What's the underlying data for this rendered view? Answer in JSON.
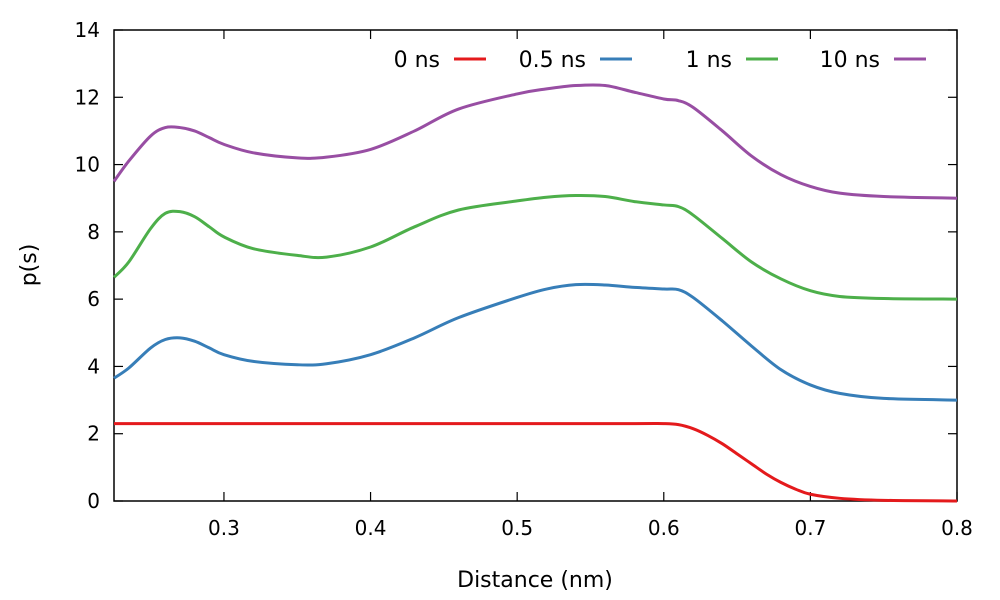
{
  "chart_data": {
    "type": "line",
    "title": "",
    "xlabel": "Distance (nm)",
    "ylabel": "p(s)",
    "xlim": [
      0.225,
      0.8
    ],
    "ylim": [
      0,
      14
    ],
    "xticks": [
      0.3,
      0.4,
      0.5,
      0.6,
      0.7,
      0.8
    ],
    "xtick_labels": [
      "0.3",
      "0.4",
      "0.5",
      "0.6",
      "0.7",
      "0.8"
    ],
    "yticks": [
      0,
      2,
      4,
      6,
      8,
      10,
      12,
      14
    ],
    "ytick_labels": [
      "0",
      "2",
      "4",
      "6",
      "8",
      "10",
      "12",
      "14"
    ],
    "grid": false,
    "legend_position": "top-right",
    "series": [
      {
        "name": "0 ns",
        "color": "#e41a1c",
        "x": [
          0.225,
          0.3,
          0.4,
          0.5,
          0.58,
          0.6,
          0.61,
          0.62,
          0.63,
          0.64,
          0.65,
          0.66,
          0.67,
          0.68,
          0.69,
          0.7,
          0.72,
          0.75,
          0.8
        ],
        "y": [
          2.3,
          2.3,
          2.3,
          2.3,
          2.3,
          2.3,
          2.27,
          2.15,
          1.95,
          1.7,
          1.4,
          1.1,
          0.8,
          0.55,
          0.35,
          0.2,
          0.08,
          0.02,
          0.0
        ]
      },
      {
        "name": "0.5 ns",
        "color": "#377eb8",
        "x": [
          0.225,
          0.235,
          0.25,
          0.26,
          0.27,
          0.28,
          0.29,
          0.3,
          0.32,
          0.35,
          0.37,
          0.4,
          0.43,
          0.46,
          0.5,
          0.52,
          0.54,
          0.56,
          0.58,
          0.6,
          0.61,
          0.62,
          0.64,
          0.66,
          0.68,
          0.7,
          0.72,
          0.75,
          0.8
        ],
        "y": [
          3.65,
          3.95,
          4.55,
          4.8,
          4.85,
          4.75,
          4.55,
          4.35,
          4.15,
          4.05,
          4.08,
          4.35,
          4.85,
          5.45,
          6.05,
          6.3,
          6.43,
          6.42,
          6.35,
          6.3,
          6.28,
          6.05,
          5.35,
          4.6,
          3.9,
          3.45,
          3.2,
          3.05,
          3.0
        ]
      },
      {
        "name": "1 ns",
        "color": "#4daf4a",
        "x": [
          0.225,
          0.235,
          0.25,
          0.26,
          0.27,
          0.28,
          0.29,
          0.3,
          0.32,
          0.35,
          0.37,
          0.4,
          0.43,
          0.46,
          0.5,
          0.52,
          0.54,
          0.56,
          0.58,
          0.6,
          0.61,
          0.62,
          0.64,
          0.66,
          0.68,
          0.7,
          0.72,
          0.75,
          0.8
        ],
        "y": [
          6.65,
          7.1,
          8.1,
          8.55,
          8.6,
          8.45,
          8.15,
          7.85,
          7.5,
          7.3,
          7.25,
          7.55,
          8.15,
          8.65,
          8.92,
          9.03,
          9.08,
          9.05,
          8.9,
          8.8,
          8.75,
          8.5,
          7.8,
          7.1,
          6.6,
          6.25,
          6.08,
          6.02,
          6.0
        ]
      },
      {
        "name": "10 ns",
        "color": "#984ea3",
        "x": [
          0.225,
          0.235,
          0.25,
          0.26,
          0.27,
          0.28,
          0.29,
          0.3,
          0.32,
          0.35,
          0.37,
          0.4,
          0.43,
          0.46,
          0.5,
          0.52,
          0.54,
          0.56,
          0.58,
          0.6,
          0.61,
          0.62,
          0.64,
          0.66,
          0.68,
          0.7,
          0.72,
          0.75,
          0.8
        ],
        "y": [
          9.5,
          10.1,
          10.85,
          11.1,
          11.1,
          11.0,
          10.8,
          10.6,
          10.35,
          10.2,
          10.22,
          10.45,
          11.0,
          11.65,
          12.1,
          12.25,
          12.35,
          12.35,
          12.15,
          11.95,
          11.9,
          11.7,
          11.0,
          10.25,
          9.7,
          9.35,
          9.15,
          9.05,
          9.0
        ]
      }
    ]
  }
}
